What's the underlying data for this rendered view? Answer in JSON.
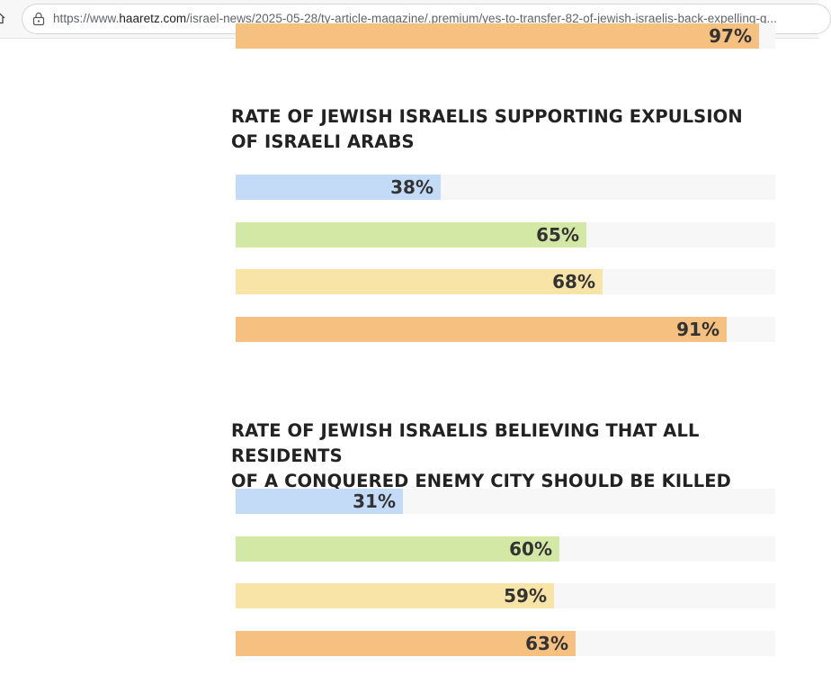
{
  "browser": {
    "url_prefix": "https://www.",
    "url_host": "haaretz.com",
    "url_path": "/israel-news/2025-05-28/ty-article-magazine/.premium/yes-to-transfer-82-of-jewish-israelis-back-expelling-g..."
  },
  "top_partial_bar": {
    "label": "97%",
    "value": 97,
    "color": "#f6c080"
  },
  "chart_data": [
    {
      "type": "bar",
      "title": "RATE OF JEWISH ISRAELIS SUPPORTING EXPULSION OF ISRAELI ARABS",
      "title_lines": [
        "RATE OF JEWISH ISRAELIS SUPPORTING EXPULSION",
        "OF ISRAELI ARABS"
      ],
      "values": [
        38,
        65,
        68,
        91
      ],
      "labels": [
        "38%",
        "65%",
        "68%",
        "91%"
      ],
      "colors": [
        "#c3dbf7",
        "#d4e8a6",
        "#f8e4a6",
        "#f6c080"
      ],
      "ylim": [
        0,
        100
      ]
    },
    {
      "type": "bar",
      "title": "RATE OF JEWISH ISRAELIS BELIEVING THAT ALL RESIDENTS OF A CONQUERED ENEMY CITY SHOULD BE KILLED",
      "title_lines": [
        "RATE OF JEWISH ISRAELIS BELIEVING THAT ALL RESIDENTS",
        "OF A CONQUERED ENEMY CITY SHOULD BE KILLED"
      ],
      "values": [
        31,
        60,
        59,
        63
      ],
      "labels": [
        "31%",
        "60%",
        "59%",
        "63%"
      ],
      "colors": [
        "#c3dbf7",
        "#d4e8a6",
        "#f8e4a6",
        "#f6c080"
      ],
      "ylim": [
        0,
        100
      ]
    }
  ]
}
